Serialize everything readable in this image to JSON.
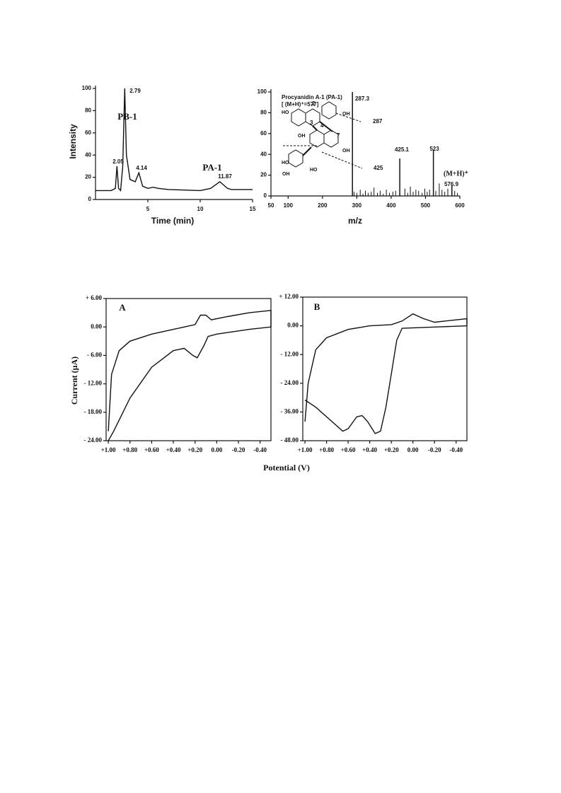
{
  "chart_data": [
    {
      "type": "line",
      "xlabel": "Time (min)",
      "ylabel": "Intensity",
      "x": [
        0,
        1.5,
        1.9,
        2.05,
        2.2,
        2.4,
        2.6,
        2.79,
        2.95,
        3.3,
        3.8,
        4.14,
        4.5,
        5,
        5.5,
        6,
        7,
        10,
        11,
        11.87,
        12.6,
        13,
        15
      ],
      "values": [
        8,
        8,
        10,
        30,
        10,
        8,
        30,
        100,
        40,
        18,
        16,
        24,
        12,
        10,
        11,
        10,
        9,
        8,
        10,
        16,
        10,
        9,
        9
      ],
      "color": "#111111",
      "xlim": [
        0,
        15
      ],
      "xticks": [
        5,
        10,
        15
      ],
      "ylim": [
        0,
        100
      ],
      "yticks": [
        0,
        20,
        40,
        60,
        80,
        100
      ],
      "annotations": [
        "PB-1",
        "PA-1",
        "2.79",
        "2.05",
        "4.14",
        "11.87"
      ]
    },
    {
      "type": "bar",
      "title": "Procyanidin A-1 (PA-1)",
      "xlabel": "m/z",
      "color": "#111111",
      "peaks": {
        "x": [
          287.3,
          425.1,
          523.0,
          576.9
        ],
        "values": [
          100,
          36,
          44,
          10
        ]
      },
      "noise": {
        "x": [
          292,
          300,
          310,
          318,
          325,
          333,
          342,
          350,
          360,
          368,
          377,
          386,
          395,
          405,
          413,
          440,
          448,
          456,
          464,
          472,
          480,
          490,
          498,
          505,
          512,
          530,
          540,
          548,
          556,
          565,
          585,
          593
        ],
        "values": [
          4,
          3,
          6,
          2,
          5,
          3,
          4,
          8,
          3,
          5,
          2,
          6,
          3,
          4,
          5,
          7,
          3,
          9,
          4,
          6,
          5,
          3,
          7,
          4,
          6,
          5,
          12,
          6,
          4,
          7,
          5,
          3
        ]
      },
      "xlim": [
        50,
        600
      ],
      "xticks": [
        50,
        100,
        200,
        300,
        400,
        500,
        600
      ],
      "ylim": [
        0,
        100
      ],
      "yticks": [
        0,
        20,
        40,
        60,
        80,
        100
      ],
      "annotations": [
        "[ (M+H)⁺=577]",
        "(M+H)⁺"
      ],
      "structure_labels": [
        "HO",
        "OH",
        "OH",
        "OH",
        "HO",
        "OH",
        "HO",
        "2",
        "3",
        "4",
        "7",
        "287",
        "425"
      ]
    },
    {
      "type": "line",
      "xlabel": "Potential (V)",
      "ylabel": "Current (μA)",
      "frame": true,
      "color": "#111111",
      "x": [
        1.0,
        0.97,
        0.9,
        0.8,
        0.6,
        0.4,
        0.2,
        0.15,
        0.1,
        0.05,
        -0.1,
        -0.3,
        -0.5,
        -0.5,
        -0.3,
        0.0,
        0.08,
        0.12,
        0.18,
        0.22,
        0.3,
        0.4,
        0.6,
        0.8,
        0.95,
        1.0
      ],
      "values": [
        -22,
        -10,
        -5,
        -3,
        -1.5,
        -0.5,
        0.5,
        2.5,
        2.5,
        1.5,
        2.2,
        3,
        3.5,
        0,
        -0.5,
        -1.5,
        -2,
        -4,
        -6.5,
        -6,
        -4.5,
        -5,
        -8.5,
        -15,
        -22,
        -24
      ],
      "xlim": [
        1.02,
        -0.5
      ],
      "xticks": [
        {
          "value": 1.0,
          "label": "+1.00"
        },
        {
          "value": 0.8,
          "label": "+0.80"
        },
        {
          "value": 0.6,
          "label": "+0.60"
        },
        {
          "value": 0.4,
          "label": "+0.40"
        },
        {
          "value": 0.2,
          "label": "+0.20"
        },
        {
          "value": 0,
          "label": "0.00"
        },
        {
          "value": -0.2,
          "label": "-0.20"
        },
        {
          "value": -0.4,
          "label": "-0.40"
        }
      ],
      "ylim": [
        -24,
        6
      ],
      "yticks": [
        {
          "value": 6,
          "label": "+ 6.00"
        },
        {
          "value": 0,
          "label": "0.00"
        },
        {
          "value": -6,
          "label": "- 6.00"
        },
        {
          "value": -12,
          "label": "- 12.00"
        },
        {
          "value": -18,
          "label": "- 18.00"
        },
        {
          "value": -24,
          "label": "- 24.00"
        }
      ],
      "annotations": [
        "A"
      ]
    },
    {
      "type": "line",
      "frame": true,
      "color": "#111111",
      "x": [
        1.0,
        0.97,
        0.9,
        0.8,
        0.6,
        0.4,
        0.2,
        0.1,
        0.0,
        -0.1,
        -0.2,
        -0.3,
        -0.5,
        -0.5,
        -0.2,
        0.1,
        0.15,
        0.2,
        0.25,
        0.3,
        0.35,
        0.42,
        0.47,
        0.52,
        0.6,
        0.65,
        0.75,
        0.9,
        1.0
      ],
      "values": [
        -40,
        -24,
        -10,
        -5,
        -1.5,
        0,
        0.5,
        2,
        5,
        3,
        1.5,
        2,
        3,
        0,
        -0.5,
        -1,
        -6,
        -20,
        -34,
        -44,
        -45,
        -40,
        -37.5,
        -38,
        -43,
        -44,
        -40,
        -34,
        -31
      ],
      "xlim": [
        1.02,
        -0.5
      ],
      "xticks": [
        {
          "value": 1.0,
          "label": "+1.00"
        },
        {
          "value": 0.8,
          "label": "+0.80"
        },
        {
          "value": 0.6,
          "label": "+0.60"
        },
        {
          "value": 0.4,
          "label": "+0.40"
        },
        {
          "value": 0.2,
          "label": "+0.20"
        },
        {
          "value": 0,
          "label": "0.00"
        },
        {
          "value": -0.2,
          "label": "-0.20"
        },
        {
          "value": -0.4,
          "label": "-0.40"
        }
      ],
      "ylim": [
        -48,
        12
      ],
      "yticks": [
        {
          "value": 12,
          "label": "+ 12.00"
        },
        {
          "value": 0,
          "label": "0.00"
        },
        {
          "value": -12,
          "label": "- 12.00"
        },
        {
          "value": -24,
          "label": "- 24.00"
        },
        {
          "value": -36,
          "label": "- 36.00"
        },
        {
          "value": -48,
          "label": "- 48.00"
        }
      ],
      "annotations": [
        "B"
      ]
    }
  ]
}
